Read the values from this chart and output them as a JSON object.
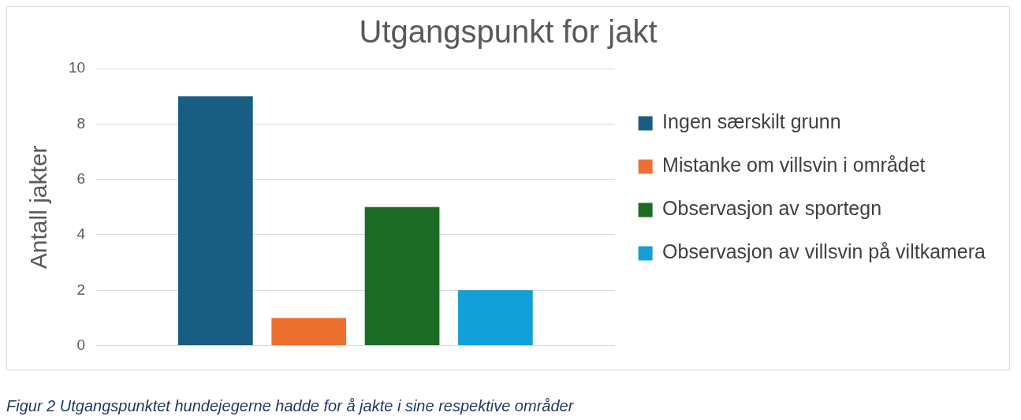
{
  "chart_data": {
    "type": "bar",
    "title": "Utgangspunkt for jakt",
    "ylabel": "Antall jakter",
    "categories": [
      null
    ],
    "series": [
      {
        "name": "Ingen særskilt grunn",
        "color": "#175e82",
        "values": [
          9
        ]
      },
      {
        "name": "Mistanke om villsvin i området",
        "color": "#ed7031",
        "values": [
          1
        ]
      },
      {
        "name": "Observasjon av sportegn",
        "color": "#1b6b25",
        "values": [
          5
        ]
      },
      {
        "name": "Observasjon av villsvin på viltkamera",
        "color": "#139fd8",
        "values": [
          2
        ]
      }
    ],
    "ylim": [
      0,
      10
    ],
    "yticks": [
      0,
      2,
      4,
      6,
      8,
      10
    ],
    "grid": "y",
    "legend": "right",
    "annotations": [
      "Figur 2 Utgangspunktet hundejegerne hadde for å jakte i sine respektive områder"
    ]
  }
}
